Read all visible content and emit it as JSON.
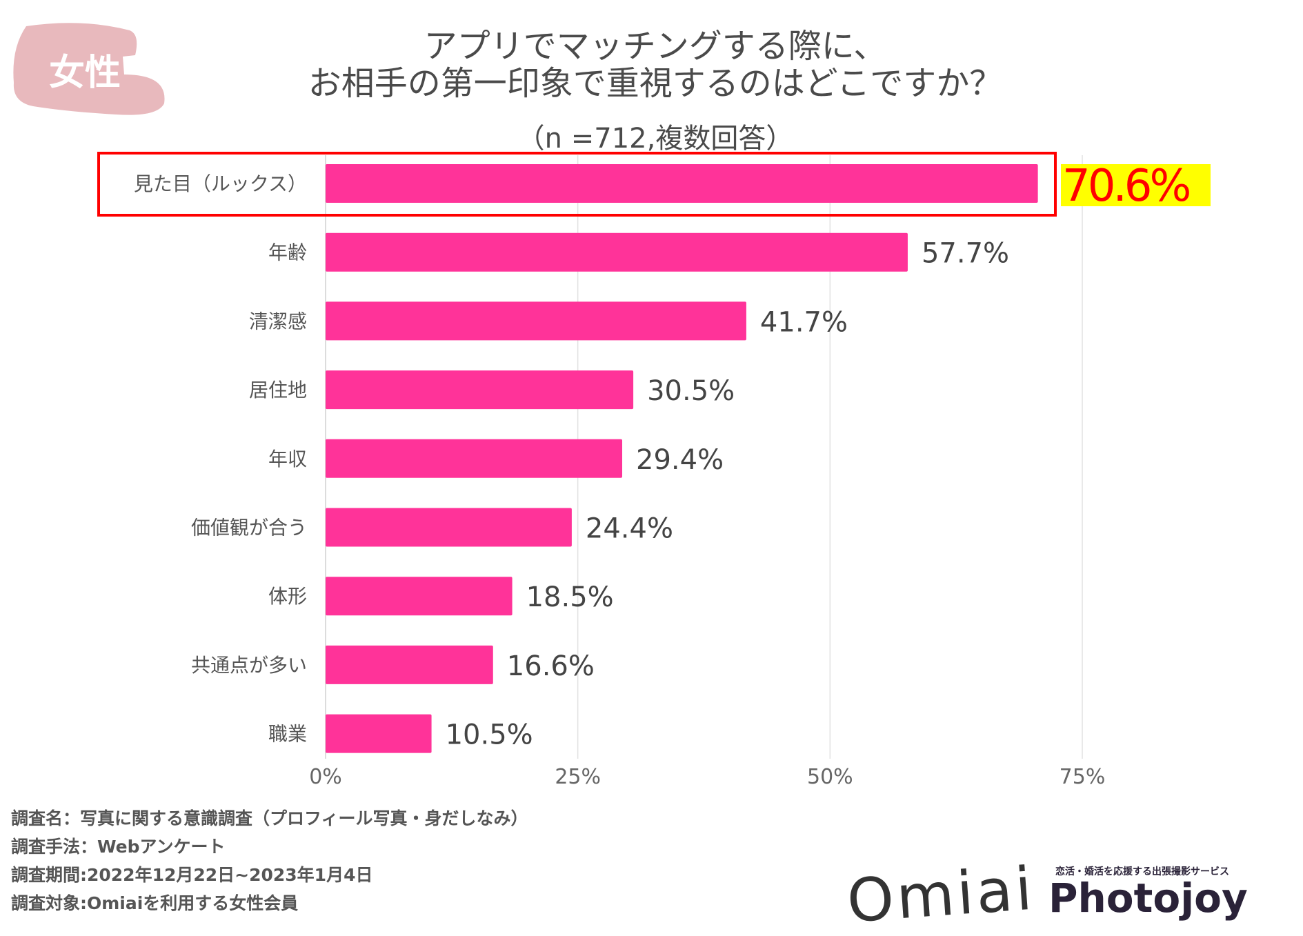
{
  "badge": {
    "label": "女性",
    "color": "#e8b9bd"
  },
  "title": {
    "line1": "アプリでマッチングする際に、",
    "line2": "お相手の第一印象で重視するのはどこですか？"
  },
  "subtitle": "（n =712,複数回答）",
  "chart_data": {
    "type": "bar",
    "orientation": "horizontal",
    "categories": [
      "見た目（ルックス）",
      "年齢",
      "清潔感",
      "居住地",
      "年収",
      "価値観が合う",
      "体形",
      "共通点が多い",
      "職業"
    ],
    "values": [
      70.6,
      57.7,
      41.7,
      30.5,
      29.4,
      24.4,
      18.5,
      16.6,
      10.5
    ],
    "value_labels": [
      "70.6%",
      "57.7%",
      "41.7%",
      "30.5%",
      "29.4%",
      "24.4%",
      "18.5%",
      "16.6%",
      "10.5%"
    ],
    "xlim": [
      0,
      75
    ],
    "xticks": [
      "0%",
      "25%",
      "50%",
      "75%"
    ],
    "grid": true,
    "bar_color": "#ff3399",
    "highlight": {
      "index": 0,
      "box_color": "#ff0000",
      "label_color": "#ff0000",
      "label_bg": "#ffff00"
    }
  },
  "footer": [
    "調査名：写真に関する意識調査（プロフィール写真・身だしなみ）",
    "調査手法：Webアンケート",
    "調査期間:2022年12月22日~2023年1月4日",
    "調査対象:Omiaiを利用する女性会員"
  ],
  "logos": {
    "omiai": "Omiai",
    "photojoy_tagline": "恋活・婚活を応援する出張撮影サービス",
    "photojoy": "Photojoy"
  }
}
